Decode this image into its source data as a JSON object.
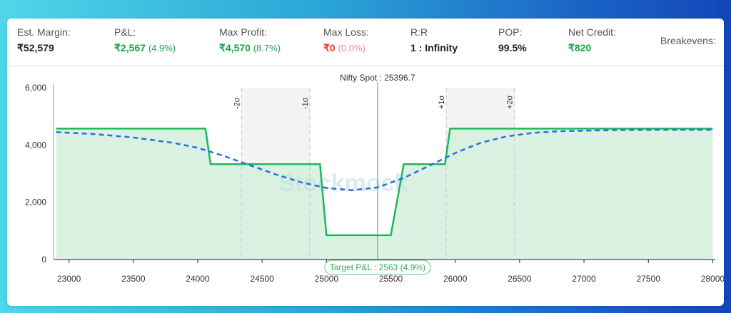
{
  "stats": {
    "est_margin": {
      "label": "Est. Margin:",
      "value": "₹52,579"
    },
    "pnl": {
      "label": "P&L:",
      "value": "₹2,567",
      "pct": "(4.9%)"
    },
    "max_profit": {
      "label": "Max Profit:",
      "value": "₹4,570",
      "pct": "(8.7%)"
    },
    "max_loss": {
      "label": "Max Loss:",
      "value": "₹0",
      "pct": "(0.0%)"
    },
    "rr": {
      "label": "R:R",
      "value": "1 : Infinity"
    },
    "pop": {
      "label": "POP:",
      "value": "99.5%"
    },
    "net_credit": {
      "label": "Net Credit:",
      "value": "₹820"
    },
    "breakevens": {
      "label": "Breakevens:"
    }
  },
  "watermark": "Stockmock",
  "chart_data": {
    "type": "line",
    "xlim": [
      22880,
      28020
    ],
    "ylim": [
      0,
      6000
    ],
    "x_ticks": [
      23000,
      23500,
      24000,
      24500,
      25000,
      25500,
      26000,
      26500,
      27000,
      27500,
      28000
    ],
    "y_ticks": [
      0,
      2000,
      4000,
      6000
    ],
    "y_tick_labels": [
      "0",
      "2,000",
      "4,000",
      "6,000"
    ],
    "grid": false,
    "spot": {
      "label": "Nifty Spot : 25396.7",
      "value": 25396.7
    },
    "target_label": "Target P&L : 2563 (4.9%)",
    "sigma_lines": [
      {
        "label": "-2σ",
        "x": 24340
      },
      {
        "label": "-1σ",
        "x": 24870
      },
      {
        "label": "+1σ",
        "x": 25930
      },
      {
        "label": "+2σ",
        "x": 26460
      }
    ],
    "series": [
      {
        "style": "solid",
        "color": "#1db85b",
        "fill": "#d7f1e0",
        "x": [
          22900,
          24060,
          24100,
          24950,
          25000,
          25500,
          25600,
          25920,
          25960,
          28000
        ],
        "y": [
          4570,
          4570,
          3330,
          3330,
          850,
          850,
          3330,
          3330,
          4570,
          4570
        ]
      },
      {
        "style": "dashed",
        "color": "#2a6fdb",
        "x": [
          22900,
          23200,
          23500,
          23800,
          24000,
          24200,
          24400,
          24600,
          24800,
          25000,
          25200,
          25400,
          25600,
          25800,
          26000,
          26200,
          26400,
          26600,
          26800,
          27000,
          27300,
          27600,
          28000
        ],
        "y": [
          4450,
          4380,
          4260,
          4080,
          3900,
          3620,
          3300,
          2980,
          2700,
          2500,
          2420,
          2520,
          2850,
          3280,
          3720,
          4080,
          4300,
          4420,
          4480,
          4500,
          4520,
          4530,
          4530
        ]
      }
    ]
  }
}
